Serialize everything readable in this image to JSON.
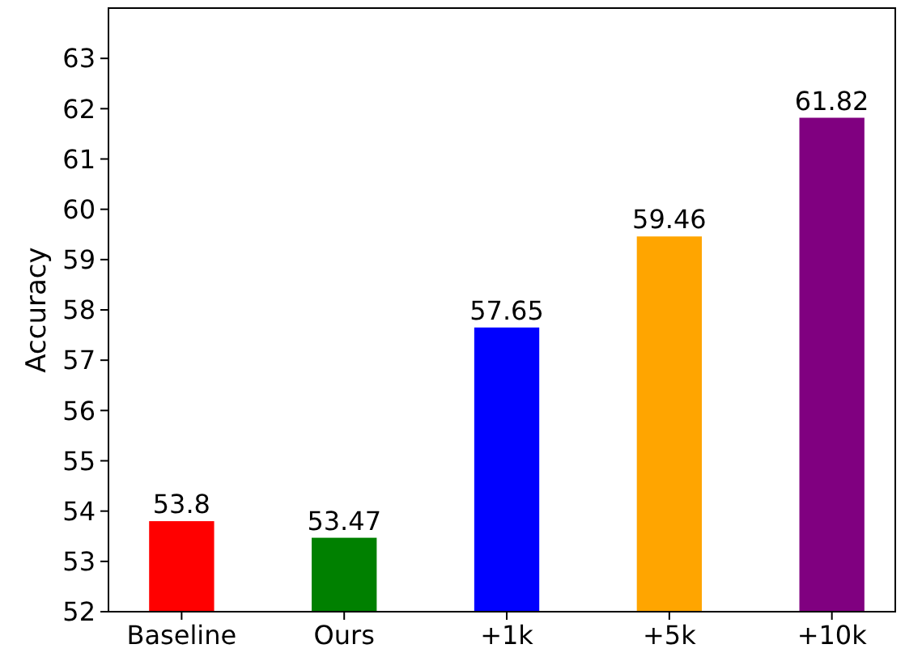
{
  "chart_data": {
    "type": "bar",
    "ylabel": "Accuracy",
    "categories": [
      "Baseline",
      "Ours",
      "+1k",
      "+5k",
      "+10k"
    ],
    "values": [
      53.8,
      53.47,
      57.65,
      59.46,
      61.82
    ],
    "colors": [
      "#ff0000",
      "#008000",
      "#0000ff",
      "#ffa500",
      "#800080"
    ],
    "ylim": [
      52,
      64
    ],
    "yticks": [
      52,
      53,
      54,
      55,
      56,
      57,
      58,
      59,
      60,
      61,
      62,
      63
    ],
    "data_labels": true,
    "grid": false
  }
}
